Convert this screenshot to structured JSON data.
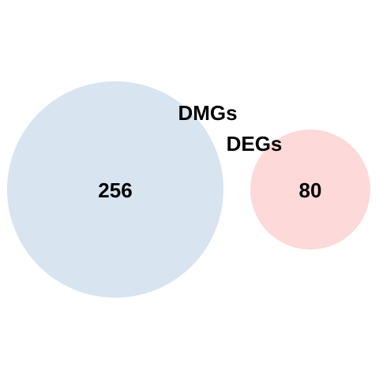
{
  "diagram": {
    "type": "venn",
    "sets": [
      {
        "label": "DMGs",
        "count": "256",
        "color": "#d8e4f0"
      },
      {
        "label": "DEGs",
        "count": "80",
        "color": "#fdd9d9"
      }
    ]
  }
}
